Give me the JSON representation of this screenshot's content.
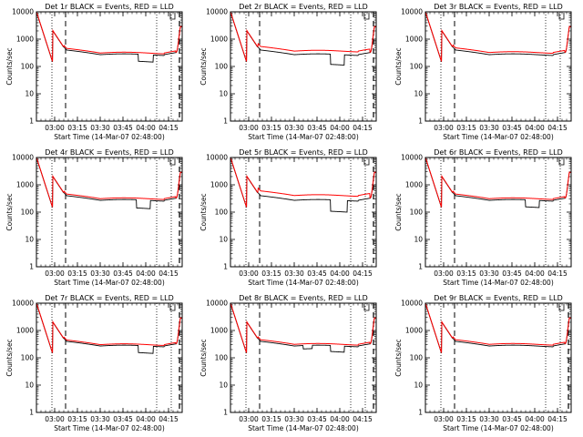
{
  "chart_data": [
    {
      "type": "line",
      "title": "Det 1r BLACK = Events, RED = LLD",
      "ylabel": "Counts/sec",
      "xlabel": "Start Time (14-Mar-07 02:48:00)",
      "dips": [
        [
          3.92,
          4.08,
          0.55
        ]
      ],
      "red_ratio": 1.15,
      "late_dash": true
    },
    {
      "type": "line",
      "title": "Det 2r BLACK = Events, RED = LLD",
      "ylabel": "Counts/sec",
      "xlabel": "Start Time (14-Mar-07 02:48:00)",
      "dips": [
        [
          3.9,
          4.05,
          0.42
        ]
      ],
      "red_ratio": 1.35,
      "late_dash": true
    },
    {
      "type": "line",
      "title": "Det 3r BLACK = Events, RED = LLD",
      "ylabel": "Counts/sec",
      "xlabel": "Start Time (14-Mar-07 02:48:00)",
      "dips": [],
      "red_ratio": 1.2,
      "late_dash": false
    },
    {
      "type": "line",
      "title": "Det 4r BLACK = Events, RED = LLD",
      "ylabel": "Counts/sec",
      "xlabel": "Start Time (14-Mar-07 02:48:00)",
      "dips": [
        [
          3.9,
          4.05,
          0.5
        ]
      ],
      "red_ratio": 1.15,
      "late_dash": true
    },
    {
      "type": "line",
      "title": "Det 5r BLACK = Events, RED = LLD",
      "ylabel": "Counts/sec",
      "xlabel": "Start Time (14-Mar-07 02:48:00)",
      "dips": [
        [
          3.9,
          4.08,
          0.38
        ]
      ],
      "red_ratio": 1.5,
      "late_dash": true
    },
    {
      "type": "line",
      "title": "Det 6r BLACK = Events, RED = LLD",
      "ylabel": "Counts/sec",
      "xlabel": "Start Time (14-Mar-07 02:48:00)",
      "dips": [
        [
          3.9,
          4.05,
          0.55
        ]
      ],
      "red_ratio": 1.15,
      "late_dash": false
    },
    {
      "type": "line",
      "title": "Det 7r BLACK = Events, RED = LLD",
      "ylabel": "Counts/sec",
      "xlabel": "Start Time (14-Mar-07 02:48:00)",
      "dips": [
        [
          3.92,
          4.08,
          0.55
        ]
      ],
      "red_ratio": 1.12,
      "late_dash": true
    },
    {
      "type": "line",
      "title": "Det 8r BLACK = Events, RED = LLD",
      "ylabel": "Counts/sec",
      "xlabel": "Start Time (14-Mar-07 02:48:00)",
      "dips": [
        [
          3.6,
          3.7,
          0.75
        ],
        [
          3.9,
          4.05,
          0.6
        ]
      ],
      "red_ratio": 1.15,
      "late_dash": true
    },
    {
      "type": "line",
      "title": "Det 9r BLACK = Events, RED = LLD",
      "ylabel": "Counts/sec",
      "xlabel": "Start Time (14-Mar-07 02:48:00)",
      "dips": [],
      "red_ratio": 1.15,
      "late_dash": true
    }
  ],
  "shared": {
    "x_ticks": [
      {
        "v": 3.0,
        "label": "03:00"
      },
      {
        "v": 3.25,
        "label": "03:15"
      },
      {
        "v": 3.5,
        "label": "03:30"
      },
      {
        "v": 3.75,
        "label": "03:45"
      },
      {
        "v": 4.0,
        "label": "04:00"
      },
      {
        "v": 4.25,
        "label": "04:15"
      }
    ],
    "xlim": [
      2.8,
      4.4
    ],
    "y_ticks": [
      {
        "v": 1,
        "label": "1"
      },
      {
        "v": 10,
        "label": "10"
      },
      {
        "v": 100,
        "label": "100"
      },
      {
        "v": 1000,
        "label": "1000"
      },
      {
        "v": 10000,
        "label": "10000"
      }
    ],
    "ylim": [
      1,
      10000
    ],
    "yscale": "log",
    "dotted_lines": [
      2.97,
      4.12,
      4.28
    ],
    "dashed_lines": [
      3.12
    ],
    "late_dashed_line": 4.37,
    "series_colors": {
      "events": "#000000",
      "lld": "#ff0000"
    },
    "legend_words": [
      "BLACK = Events",
      "RED = LLD"
    ]
  }
}
